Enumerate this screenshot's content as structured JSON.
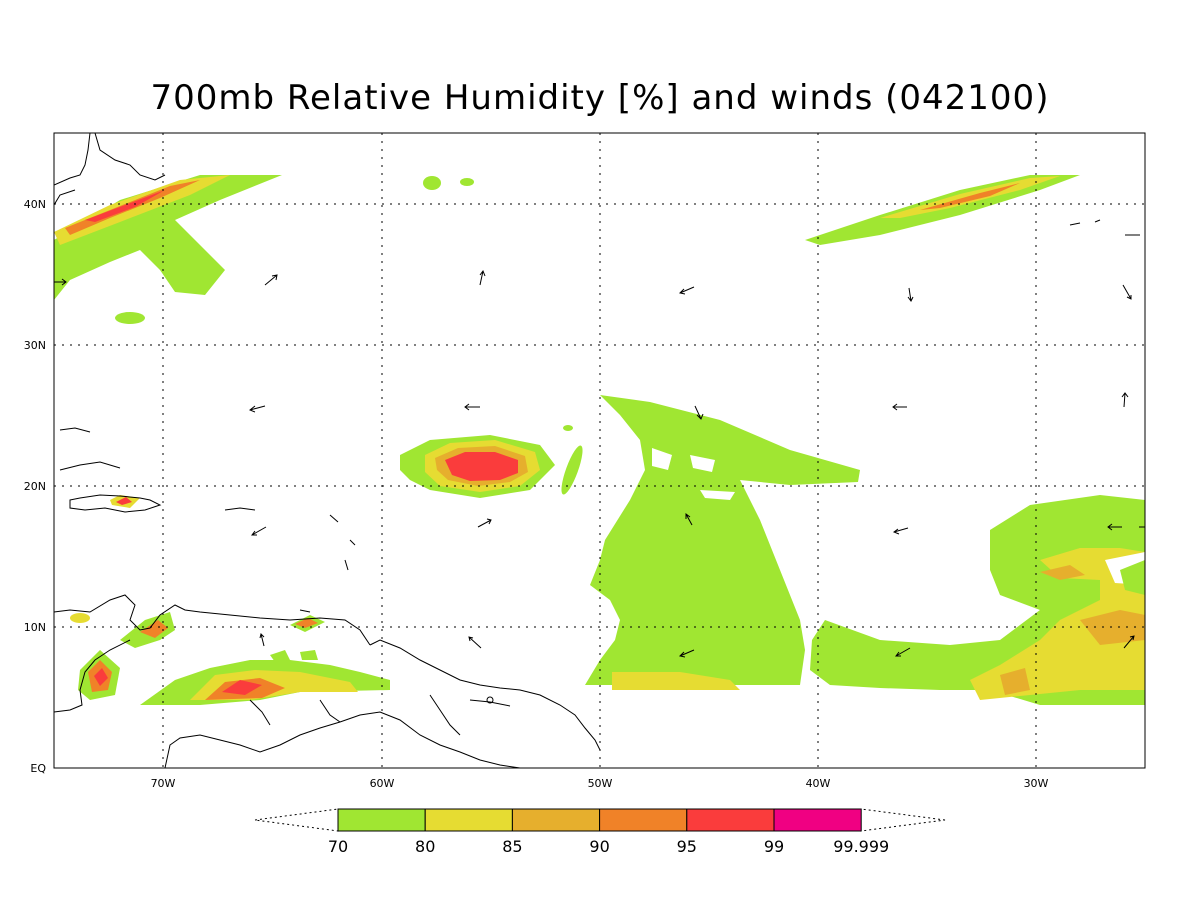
{
  "title": "700mb Relative Humidity [%] and winds (042100)",
  "map": {
    "lon_range": [
      -75,
      -25
    ],
    "lat_range": [
      0,
      45
    ],
    "grid_lons": [
      -70,
      -60,
      -50,
      -40,
      -30
    ],
    "grid_lats": [
      10,
      20,
      30,
      40
    ],
    "lon_labels": [
      "70W",
      "60W",
      "50W",
      "40W",
      "30W"
    ],
    "lat_labels": [
      "EQ",
      "10N",
      "20N",
      "30N",
      "40N"
    ]
  },
  "colorbar": {
    "levels": [
      "70",
      "80",
      "85",
      "90",
      "95",
      "99",
      "99.999"
    ],
    "colors": [
      "#a0e632",
      "#e6dc32",
      "#e6af2d",
      "#f08228",
      "#fa3c3c",
      "#f00082"
    ]
  }
}
